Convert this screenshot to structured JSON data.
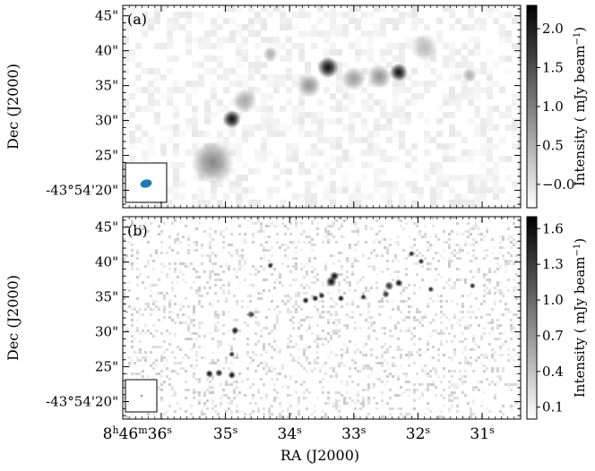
{
  "chart_data": [
    {
      "type": "heatmap",
      "panel_label": "(a)",
      "xlabel": "",
      "ylabel": "Dec (J2000)",
      "ytick_labels": [
        "-43°54'20\"",
        "25\"",
        "30\"",
        "35\"",
        "40\"",
        "45\""
      ],
      "ytick_values_arcsec": [
        20,
        25,
        30,
        35,
        40,
        45
      ],
      "ylim_arcsec": [
        46.5,
        17.5
      ],
      "colorbar": {
        "label": "Intensity ( mJy beam⁻¹)",
        "label_main": "Intensity ( mJy beam",
        "label_sup": "−1",
        "label_end": ")",
        "range": [
          -0.3,
          2.3
        ],
        "ticks": [
          -0.0,
          0.5,
          1.0,
          1.5,
          2.0
        ],
        "tick_labels": [
          "−0.0",
          "0.5",
          "1.0",
          "1.5",
          "2.0"
        ],
        "colormap": "grey, white (low) to black (high)"
      },
      "sources": [
        {
          "ra_s": 35.2,
          "dec_as": 24.0,
          "peak": 0.9,
          "sigma": 1.4
        },
        {
          "ra_s": 34.9,
          "dec_as": 30.2,
          "peak": 2.2,
          "sigma": 0.6
        },
        {
          "ra_s": 34.7,
          "dec_as": 32.8,
          "peak": 0.6,
          "sigma": 0.8
        },
        {
          "ra_s": 33.7,
          "dec_as": 35.0,
          "peak": 0.8,
          "sigma": 0.8
        },
        {
          "ra_s": 33.4,
          "dec_as": 37.6,
          "peak": 2.2,
          "sigma": 0.7
        },
        {
          "ra_s": 33.0,
          "dec_as": 36.0,
          "peak": 0.7,
          "sigma": 0.8
        },
        {
          "ra_s": 32.6,
          "dec_as": 36.3,
          "peak": 0.8,
          "sigma": 0.8
        },
        {
          "ra_s": 32.3,
          "dec_as": 36.9,
          "peak": 2.2,
          "sigma": 0.6
        },
        {
          "ra_s": 31.9,
          "dec_as": 40.5,
          "peak": 0.4,
          "sigma": 0.9
        },
        {
          "ra_s": 31.2,
          "dec_as": 36.5,
          "peak": 0.5,
          "sigma": 0.5
        },
        {
          "ra_s": 34.3,
          "dec_as": 39.5,
          "peak": 0.5,
          "sigma": 0.5
        }
      ],
      "beam_color": "#1f77b4"
    },
    {
      "type": "heatmap",
      "panel_label": "(b)",
      "xlabel": "RA (J2000)",
      "ylabel": "Dec (J2000)",
      "xtick_values_s": [
        36,
        35,
        34,
        33,
        32,
        31
      ],
      "xtick_first_label": {
        "h": "8",
        "h_unit": "h",
        "d": "46",
        "d_unit": "m",
        "s": "36",
        "s_unit": "s"
      },
      "xtick_labels": [
        "36",
        "35",
        "34",
        "33",
        "32",
        "31"
      ],
      "xtick_unit": "s",
      "xlim_s": [
        36.6,
        30.4
      ],
      "ytick_labels": [
        "-43°54'20\"",
        "25\"",
        "30\"",
        "35\"",
        "40\"",
        "45\""
      ],
      "ytick_values_arcsec": [
        20,
        25,
        30,
        35,
        40,
        45
      ],
      "ylim_arcsec": [
        46.5,
        17.5
      ],
      "colorbar": {
        "label": "Intensity ( mJy beam⁻¹)",
        "label_main": "Intensity ( mJy beam",
        "label_sup": "−1",
        "label_end": ")",
        "range": [
          0.0,
          1.7
        ],
        "ticks": [
          0.1,
          0.4,
          0.7,
          1.0,
          1.3,
          1.6
        ],
        "tick_labels": [
          "0.1",
          "0.4",
          "0.7",
          "1.0",
          "1.3",
          "1.6"
        ],
        "colormap": "grey, white (low) to black (high)"
      },
      "sources": [
        {
          "ra_s": 35.25,
          "dec_as": 24.0,
          "peak": 1.7,
          "sigma": 0.25
        },
        {
          "ra_s": 35.1,
          "dec_as": 24.1,
          "peak": 1.6,
          "sigma": 0.25
        },
        {
          "ra_s": 34.9,
          "dec_as": 23.8,
          "peak": 1.7,
          "sigma": 0.25
        },
        {
          "ra_s": 34.9,
          "dec_as": 26.8,
          "peak": 1.5,
          "sigma": 0.2
        },
        {
          "ra_s": 34.85,
          "dec_as": 30.2,
          "peak": 1.7,
          "sigma": 0.25
        },
        {
          "ra_s": 34.6,
          "dec_as": 32.5,
          "peak": 1.4,
          "sigma": 0.25
        },
        {
          "ra_s": 33.75,
          "dec_as": 34.5,
          "peak": 1.7,
          "sigma": 0.22
        },
        {
          "ra_s": 33.6,
          "dec_as": 34.8,
          "peak": 1.7,
          "sigma": 0.22
        },
        {
          "ra_s": 33.5,
          "dec_as": 35.2,
          "peak": 1.6,
          "sigma": 0.22
        },
        {
          "ra_s": 33.35,
          "dec_as": 37.2,
          "peak": 1.7,
          "sigma": 0.35
        },
        {
          "ra_s": 33.3,
          "dec_as": 38.0,
          "peak": 1.7,
          "sigma": 0.3
        },
        {
          "ra_s": 33.2,
          "dec_as": 34.8,
          "peak": 1.7,
          "sigma": 0.22
        },
        {
          "ra_s": 32.85,
          "dec_as": 35.0,
          "peak": 1.6,
          "sigma": 0.2
        },
        {
          "ra_s": 32.5,
          "dec_as": 35.4,
          "peak": 1.5,
          "sigma": 0.25
        },
        {
          "ra_s": 32.45,
          "dec_as": 36.6,
          "peak": 1.4,
          "sigma": 0.3
        },
        {
          "ra_s": 32.3,
          "dec_as": 37.0,
          "peak": 1.7,
          "sigma": 0.25
        },
        {
          "ra_s": 32.1,
          "dec_as": 41.2,
          "peak": 1.6,
          "sigma": 0.2
        },
        {
          "ra_s": 31.95,
          "dec_as": 40.1,
          "peak": 1.6,
          "sigma": 0.2
        },
        {
          "ra_s": 31.8,
          "dec_as": 36.1,
          "peak": 1.6,
          "sigma": 0.2
        },
        {
          "ra_s": 31.15,
          "dec_as": 36.6,
          "peak": 1.6,
          "sigma": 0.2
        },
        {
          "ra_s": 34.3,
          "dec_as": 39.5,
          "peak": 1.6,
          "sigma": 0.2
        }
      ],
      "beam_color": "#1f77b4"
    }
  ]
}
